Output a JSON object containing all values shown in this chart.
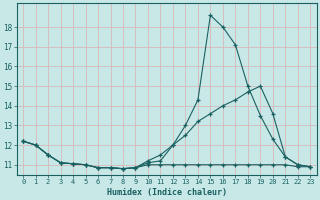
{
  "xlabel": "Humidex (Indice chaleur)",
  "bg_color": "#c8e8e8",
  "grid_color": "#d8b8b8",
  "line_color": "#1a6060",
  "xlim": [
    -0.5,
    23.5
  ],
  "ylim": [
    10.5,
    19.2
  ],
  "xticks": [
    0,
    1,
    2,
    3,
    4,
    5,
    6,
    7,
    8,
    9,
    10,
    11,
    12,
    13,
    14,
    15,
    16,
    17,
    18,
    19,
    20,
    21,
    22,
    23
  ],
  "yticks": [
    11,
    12,
    13,
    14,
    15,
    16,
    17,
    18
  ],
  "series1_x": [
    0,
    1,
    2,
    3,
    4,
    5,
    6,
    7,
    8,
    9,
    10,
    11,
    12,
    13,
    14,
    15,
    16,
    17,
    18,
    19,
    20,
    21,
    22,
    23
  ],
  "series1_y": [
    12.2,
    12.0,
    11.5,
    11.1,
    11.05,
    11.0,
    10.85,
    10.85,
    10.8,
    10.85,
    11.1,
    11.2,
    12.0,
    13.0,
    14.3,
    18.6,
    18.0,
    17.1,
    15.0,
    13.5,
    12.3,
    11.4,
    11.0,
    10.9
  ],
  "series2_x": [
    0,
    1,
    2,
    3,
    4,
    5,
    6,
    7,
    8,
    9,
    10,
    11,
    12,
    13,
    14,
    15,
    16,
    17,
    18,
    19,
    20,
    21,
    22,
    23
  ],
  "series2_y": [
    12.2,
    12.0,
    11.5,
    11.1,
    11.05,
    11.0,
    10.85,
    10.85,
    10.8,
    10.85,
    11.2,
    11.5,
    12.0,
    12.5,
    13.2,
    13.6,
    14.0,
    14.3,
    14.7,
    15.0,
    13.6,
    11.4,
    11.0,
    10.9
  ],
  "series3_x": [
    0,
    1,
    2,
    3,
    4,
    5,
    6,
    7,
    8,
    9,
    10,
    11,
    12,
    13,
    14,
    15,
    16,
    17,
    18,
    19,
    20,
    21,
    22,
    23
  ],
  "series3_y": [
    12.2,
    12.0,
    11.5,
    11.1,
    11.05,
    11.0,
    10.85,
    10.85,
    10.8,
    10.85,
    11.0,
    11.0,
    11.0,
    11.0,
    11.0,
    11.0,
    11.0,
    11.0,
    11.0,
    11.0,
    11.0,
    11.0,
    10.9,
    10.9
  ]
}
